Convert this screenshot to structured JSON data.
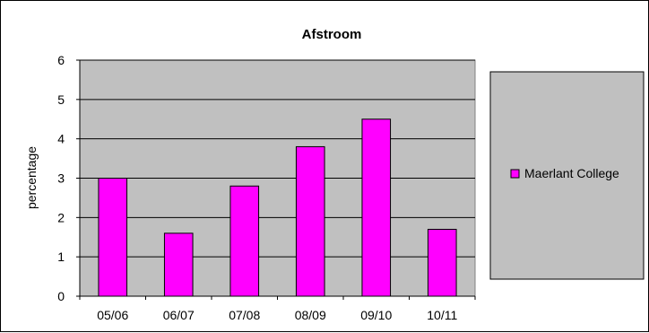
{
  "chart_data": {
    "type": "bar",
    "title": "Afstroom",
    "xlabel": "",
    "ylabel": "percentage",
    "categories": [
      "05/06",
      "06/07",
      "07/08",
      "08/09",
      "09/10",
      "10/11"
    ],
    "series": [
      {
        "name": "Maerlant College",
        "values": [
          3.0,
          1.6,
          2.8,
          3.8,
          4.5,
          1.7
        ],
        "color": "#ff00ff"
      }
    ],
    "ylim": [
      0,
      6
    ],
    "yticks": [
      0,
      1,
      2,
      3,
      4,
      5,
      6
    ],
    "grid": true,
    "legend_position": "right",
    "plot_background": "#c0c0c0"
  }
}
